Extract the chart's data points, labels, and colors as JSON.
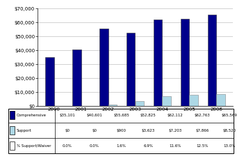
{
  "years": [
    "2000",
    "2001",
    "2002",
    "2003",
    "2004",
    "2005",
    "2006"
  ],
  "comprehensive": [
    35101,
    40601,
    55685,
    52825,
    62112,
    62763,
    65569
  ],
  "support": [
    0,
    0,
    900,
    3623,
    7203,
    7866,
    8520
  ],
  "pct_support": [
    "0.0%",
    "0.0%",
    "1.6%",
    "6.9%",
    "11.6%",
    "12.5%",
    "13.0%"
  ],
  "comprehensive_color": "#00008B",
  "support_color": "#ADD8E6",
  "bar_width": 0.32,
  "ylim": [
    0,
    70000
  ],
  "yticks": [
    0,
    10000,
    20000,
    30000,
    40000,
    50000,
    60000,
    70000
  ],
  "bg_color": "#ffffff",
  "grid_color": "#c0c0c0",
  "row_labels": [
    "Comprehensive",
    "Support",
    "% Support/Waiver"
  ],
  "row_values_comp": [
    "$35,101",
    "$40,601",
    "$55,685",
    "$52,825",
    "$62,112",
    "$62,763",
    "$65,569"
  ],
  "row_values_supp": [
    "$0",
    "$0",
    "$900",
    "$3,623",
    "$7,203",
    "$7,866",
    "$8,520"
  ],
  "row_values_pct": [
    "0.0%",
    "0.0%",
    "1.6%",
    "6.9%",
    "11.6%",
    "12.5%",
    "13.0%"
  ]
}
